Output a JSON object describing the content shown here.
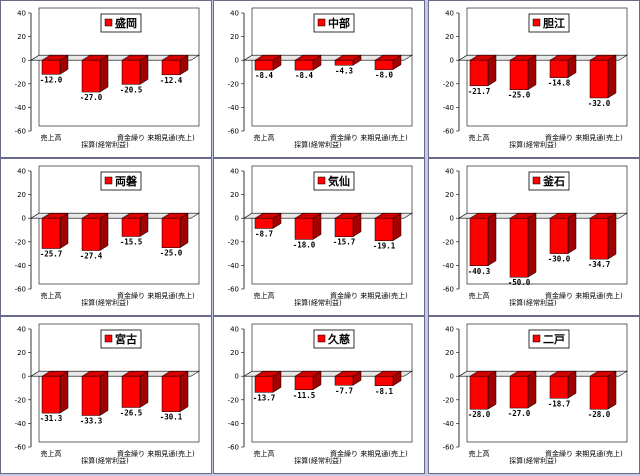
{
  "colors": {
    "bar_front": "#ff0000",
    "bar_side": "#a30000",
    "bar_top": "#d40000",
    "plot_back": "#ffffff",
    "page_bg": "#c7c9e6"
  },
  "chart_data": [
    {
      "type": "bar",
      "title": "盛岡",
      "categories": [
        "売上高",
        "採算(経常利益)",
        "資金繰り",
        "来期見通(売上)"
      ],
      "values": [
        -12.0,
        -27.0,
        -20.5,
        -12.4
      ],
      "ylim": [
        -60,
        40
      ],
      "yticks": [
        40,
        20,
        0,
        -20,
        -40,
        -60
      ],
      "grid": false,
      "legend": "none"
    },
    {
      "type": "bar",
      "title": "中部",
      "categories": [
        "売上高",
        "採算(経常利益)",
        "資金繰り",
        "来期見通(売上)"
      ],
      "values": [
        -8.4,
        -8.4,
        -4.3,
        -8.0
      ],
      "ylim": [
        -60,
        40
      ],
      "yticks": [
        40,
        20,
        0,
        -20,
        -40,
        -60
      ],
      "grid": false,
      "legend": "none"
    },
    {
      "type": "bar",
      "title": "胆江",
      "categories": [
        "売上高",
        "採算(経常利益)",
        "資金繰り",
        "来期見通(売上)"
      ],
      "values": [
        -21.7,
        -25.0,
        -14.8,
        -32.0
      ],
      "ylim": [
        -60,
        40
      ],
      "yticks": [
        40,
        20,
        0,
        -20,
        -40,
        -60
      ],
      "grid": false,
      "legend": "none"
    },
    {
      "type": "bar",
      "title": "両磐",
      "categories": [
        "売上高",
        "採算(経常利益)",
        "資金繰り",
        "来期見通(売上)"
      ],
      "values": [
        -25.7,
        -27.4,
        -15.5,
        -25.0
      ],
      "ylim": [
        -60,
        40
      ],
      "yticks": [
        40,
        20,
        0,
        -20,
        -40,
        -60
      ],
      "grid": false,
      "legend": "none"
    },
    {
      "type": "bar",
      "title": "気仙",
      "categories": [
        "売上高",
        "採算(経常利益)",
        "資金繰り",
        "来期見通(売上)"
      ],
      "values": [
        -8.7,
        -18.0,
        -15.7,
        -19.1
      ],
      "ylim": [
        -60,
        40
      ],
      "yticks": [
        40,
        20,
        0,
        -20,
        -40,
        -60
      ],
      "grid": false,
      "legend": "none"
    },
    {
      "type": "bar",
      "title": "釜石",
      "categories": [
        "売上高",
        "採算(経常利益)",
        "資金繰り",
        "来期見通(売上)"
      ],
      "values": [
        -40.3,
        -50.0,
        -30.0,
        -34.7
      ],
      "ylim": [
        -60,
        40
      ],
      "yticks": [
        40,
        20,
        0,
        -20,
        -40,
        -60
      ],
      "grid": false,
      "legend": "none"
    },
    {
      "type": "bar",
      "title": "宮古",
      "categories": [
        "売上高",
        "採算(経常利益)",
        "資金繰り",
        "来期見通(売上)"
      ],
      "values": [
        -31.3,
        -33.3,
        -26.5,
        -30.1
      ],
      "ylim": [
        -60,
        40
      ],
      "yticks": [
        40,
        20,
        0,
        -20,
        -40,
        -60
      ],
      "grid": false,
      "legend": "none"
    },
    {
      "type": "bar",
      "title": "久慈",
      "categories": [
        "売上高",
        "採算(経常利益)",
        "資金繰り",
        "来期見通(売上)"
      ],
      "values": [
        -13.7,
        -11.5,
        -7.7,
        -8.1
      ],
      "ylim": [
        -60,
        40
      ],
      "yticks": [
        40,
        20,
        0,
        -20,
        -40,
        -60
      ],
      "grid": false,
      "legend": "none"
    },
    {
      "type": "bar",
      "title": "二戸",
      "categories": [
        "売上高",
        "採算(経常利益)",
        "資金繰り",
        "来期見通(売上)"
      ],
      "values": [
        -28.0,
        -27.0,
        -18.7,
        -28.0
      ],
      "ylim": [
        -60,
        40
      ],
      "yticks": [
        40,
        20,
        0,
        -20,
        -40,
        -60
      ],
      "grid": false,
      "legend": "none"
    }
  ]
}
